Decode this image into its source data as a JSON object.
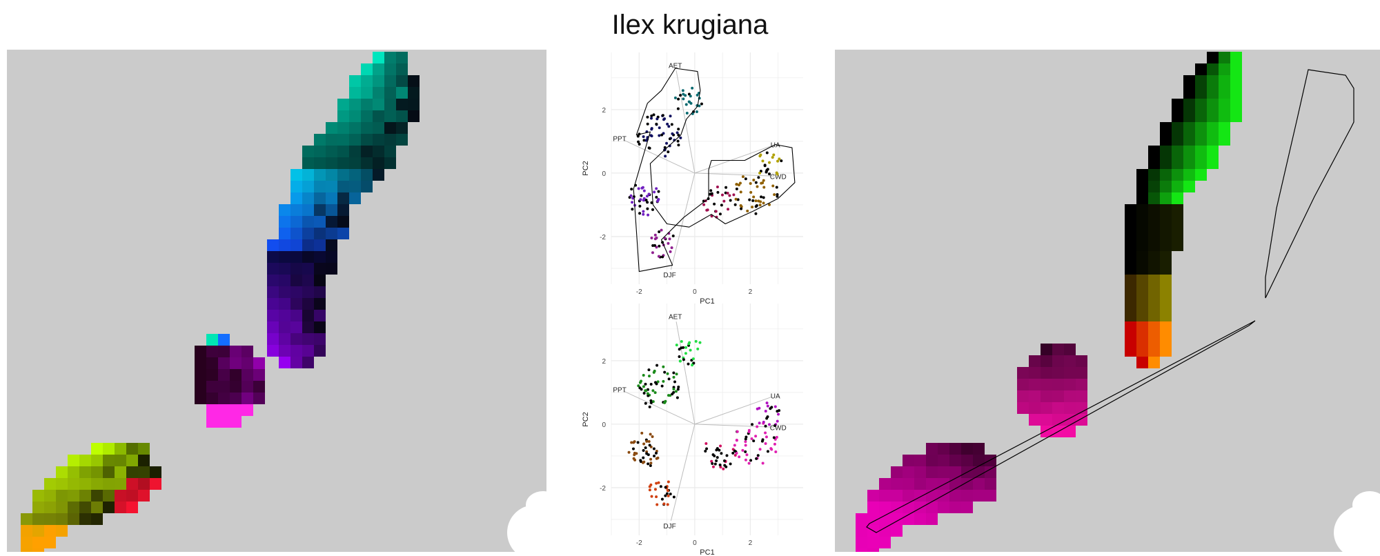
{
  "title": "Ilex krugiana",
  "colors": {
    "map_background": "#cbcbcb",
    "loading_line": "#bdbdbd",
    "grid": "#ebebeb"
  },
  "chart_data": [
    {
      "type": "scatter",
      "panel": "pca-top",
      "xlabel": "PC1",
      "ylabel": "PC2",
      "xlim": [
        -3,
        3.9
      ],
      "ylim": [
        -3.5,
        3.8
      ],
      "xticks": [
        -2,
        0,
        2
      ],
      "yticks": [
        -2,
        0,
        2
      ],
      "grid": true,
      "loadings": [
        {
          "label": "AET",
          "x": -0.7,
          "y": 3.4
        },
        {
          "label": "PPT",
          "x": -2.7,
          "y": 1.1
        },
        {
          "label": "DJF",
          "x": -0.9,
          "y": -3.2
        },
        {
          "label": "UA",
          "x": 2.9,
          "y": 0.9
        },
        {
          "label": "CWD",
          "x": 3.0,
          "y": -0.1
        }
      ]
    },
    {
      "type": "scatter",
      "panel": "pca-bottom",
      "xlabel": "PC1",
      "ylabel": "PC2",
      "xlim": [
        -3,
        3.9
      ],
      "ylim": [
        -3.5,
        3.8
      ],
      "xticks": [
        -2,
        0,
        2
      ],
      "yticks": [
        -2,
        0,
        2
      ],
      "grid": true,
      "loadings": [
        {
          "label": "AET",
          "x": -0.7,
          "y": 3.4
        },
        {
          "label": "PPT",
          "x": -2.7,
          "y": 1.1
        },
        {
          "label": "DJF",
          "x": -0.9,
          "y": -3.2
        },
        {
          "label": "UA",
          "x": 2.9,
          "y": 0.9
        },
        {
          "label": "CWD",
          "x": 3.0,
          "y": -0.1
        }
      ]
    }
  ]
}
